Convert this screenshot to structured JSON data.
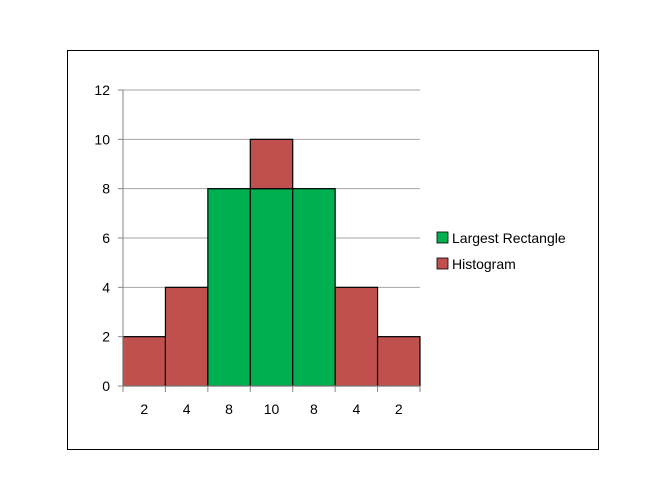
{
  "chart_data": {
    "type": "bar",
    "stacked": true,
    "categories": [
      "2",
      "4",
      "8",
      "10",
      "8",
      "4",
      "2"
    ],
    "series": [
      {
        "name": "Largest Rectangle",
        "color": "#00b050",
        "values": [
          0,
          0,
          8,
          8,
          8,
          0,
          0
        ]
      },
      {
        "name": "Histogram",
        "color": "#c0504d",
        "values": [
          2,
          4,
          0,
          2,
          0,
          4,
          2
        ]
      }
    ],
    "ylim": [
      0,
      12
    ],
    "yticks": [
      "0",
      "2",
      "4",
      "6",
      "8",
      "10",
      "12"
    ],
    "grid": true,
    "legend_position": "right",
    "title": "",
    "xlabel": "",
    "ylabel": ""
  }
}
